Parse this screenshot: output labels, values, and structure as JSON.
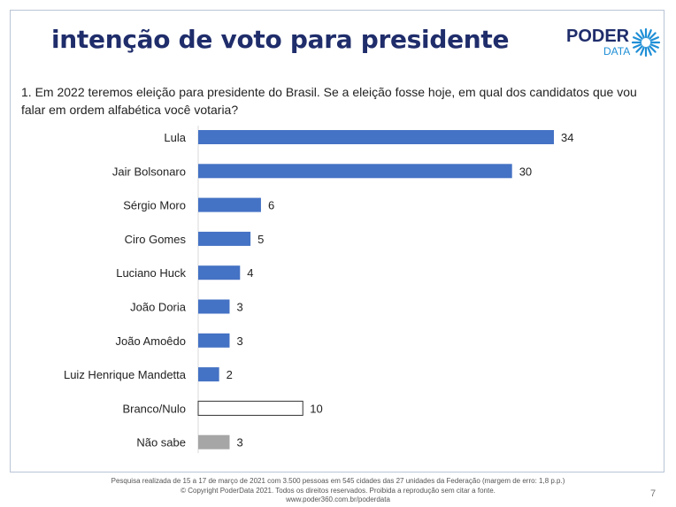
{
  "header": {
    "title": "intenção de voto para presidente",
    "logo_main": "PODER",
    "logo_sub": "DATA",
    "brand_color": "#1f2d6b",
    "accent_color": "#1f8fd6"
  },
  "question": "1. Em 2022 teremos eleição para presidente do Brasil. Se a eleição fosse hoje, em qual dos candidatos que vou falar em ordem alfabética você votaria?",
  "chart_data": {
    "type": "bar",
    "orientation": "horizontal",
    "title": "",
    "xlabel": "",
    "ylabel": "",
    "xlim": [
      0,
      34
    ],
    "grid": false,
    "categories": [
      "Lula",
      "Jair Bolsonaro",
      "Sérgio Moro",
      "Ciro Gomes",
      "Luciano Huck",
      "João Doria",
      "João Amoêdo",
      "Luiz Henrique Mandetta",
      "Branco/Nulo",
      "Não sabe"
    ],
    "values": [
      34,
      30,
      6,
      5,
      4,
      3,
      3,
      2,
      10,
      3
    ],
    "bar_styles": [
      "candidate",
      "candidate",
      "candidate",
      "candidate",
      "candidate",
      "candidate",
      "candidate",
      "candidate",
      "outline",
      "gray"
    ],
    "colors": {
      "candidate": "#4472c4",
      "outline": "#ffffff",
      "outline_stroke": "#333333",
      "gray": "#a6a6a6"
    }
  },
  "footer": {
    "line1": "Pesquisa realizada de 15 a 17 de março de 2021 com 3.500 pessoas em 545 cidades das 27 unidades da Federação (margem de erro: 1,8 p.p.)",
    "line2": "© Copyright PoderData 2021. Todos os direitos reservados. Proibida a reprodução sem citar a fonte.",
    "line3": "www.poder360.com.br/poderdata"
  },
  "page_number": "7"
}
